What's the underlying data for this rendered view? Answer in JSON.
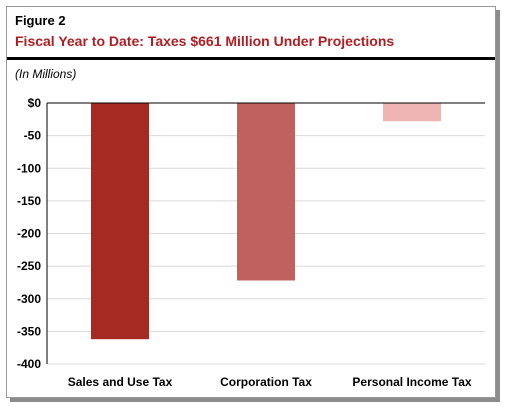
{
  "figure": {
    "label": "Figure 2",
    "title": "Fiscal  Year to Date:  Taxes $661  Million Under Projections",
    "units": "(In Millions)"
  },
  "chart_data": {
    "type": "bar",
    "categories": [
      "Sales and Use Tax",
      "Corporation Tax",
      "Personal Income Tax"
    ],
    "values": [
      -362,
      -272,
      -28
    ],
    "colors": [
      "#a52a22",
      "#bf625e",
      "#efb4b4"
    ],
    "ylim": [
      -400,
      0
    ],
    "yticks": [
      0,
      -50,
      -100,
      -150,
      -200,
      -250,
      -300,
      -350,
      -400
    ],
    "ytick_labels": [
      "$0",
      "-50",
      "-100",
      "-150",
      "-200",
      "-250",
      "-300",
      "-350",
      "-400"
    ],
    "grid": true
  }
}
